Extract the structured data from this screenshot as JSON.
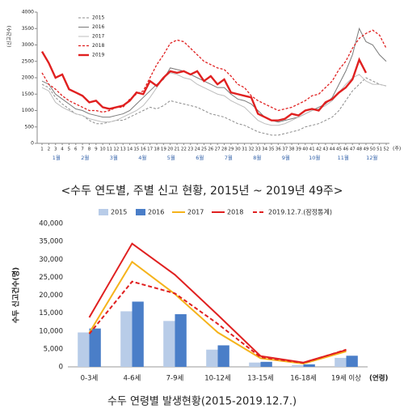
{
  "chart_data": [
    {
      "type": "line",
      "y_label": "(신고건수)",
      "x_label": "(주)",
      "x": [
        1,
        2,
        3,
        4,
        5,
        6,
        7,
        8,
        9,
        10,
        11,
        12,
        13,
        14,
        15,
        16,
        17,
        18,
        19,
        20,
        21,
        22,
        23,
        24,
        25,
        26,
        27,
        28,
        29,
        30,
        31,
        32,
        33,
        34,
        35,
        36,
        37,
        38,
        39,
        40,
        41,
        42,
        43,
        44,
        45,
        46,
        47,
        48,
        49,
        50,
        51,
        52
      ],
      "xlim": [
        1,
        52
      ],
      "xticks": [
        1,
        2,
        3,
        4,
        5,
        6,
        7,
        8,
        9,
        10,
        11,
        12,
        13,
        14,
        15,
        16,
        17,
        18,
        19,
        20,
        21,
        22,
        23,
        24,
        25,
        26,
        27,
        28,
        29,
        30,
        31,
        32,
        33,
        34,
        35,
        36,
        37,
        38,
        39,
        40,
        41,
        42,
        43,
        44,
        45,
        46,
        47,
        48,
        49,
        50,
        51,
        52
      ],
      "x_groups": [
        "1월",
        "2월",
        "3월",
        "4월",
        "5월",
        "6월",
        "7월",
        "8월",
        "9월",
        "10월",
        "11월",
        "12월"
      ],
      "x_group_color": "#2f5fa8",
      "ylim": [
        0,
        4000
      ],
      "yticks": [
        0,
        500,
        1000,
        1500,
        2000,
        2500,
        3000,
        3500,
        4000
      ],
      "grid": false,
      "series": [
        {
          "name": "2015",
          "color": "#8c8c8c",
          "style": "dashed",
          "width": 1,
          "values": [
            1800,
            1700,
            1400,
            1200,
            1050,
            900,
            850,
            700,
            600,
            600,
            650,
            700,
            700,
            800,
            900,
            1000,
            1100,
            1050,
            1150,
            1300,
            1250,
            1200,
            1150,
            1100,
            1000,
            900,
            850,
            800,
            700,
            600,
            550,
            450,
            350,
            300,
            250,
            250,
            300,
            350,
            400,
            500,
            550,
            600,
            700,
            800,
            1000,
            1300,
            1600,
            1800,
            2000,
            1900,
            1800,
            1750
          ]
        },
        {
          "name": "2016",
          "color": "#7a7a7a",
          "style": "solid",
          "width": 1,
          "values": [
            1900,
            1800,
            1500,
            1350,
            1200,
            1050,
            1000,
            900,
            850,
            800,
            800,
            850,
            900,
            1000,
            1200,
            1400,
            1600,
            1800,
            1950,
            2300,
            2250,
            2200,
            2100,
            2000,
            1900,
            1800,
            1700,
            1700,
            1500,
            1350,
            1300,
            1200,
            1000,
            800,
            700,
            650,
            700,
            750,
            800,
            900,
            1000,
            1100,
            1200,
            1400,
            1800,
            2200,
            2700,
            3500,
            3100,
            3000,
            2700,
            2500
          ]
        },
        {
          "name": "2017",
          "color": "#bdbdbd",
          "style": "solid",
          "width": 1,
          "values": [
            1700,
            1600,
            1250,
            1100,
            1000,
            900,
            850,
            750,
            700,
            650,
            650,
            700,
            800,
            900,
            1000,
            1150,
            1400,
            1700,
            2000,
            2150,
            2100,
            2000,
            1950,
            1800,
            1700,
            1600,
            1500,
            1450,
            1300,
            1200,
            1100,
            900,
            700,
            600,
            550,
            550,
            600,
            700,
            800,
            900,
            1000,
            1050,
            1150,
            1300,
            1550,
            1800,
            2000,
            2100,
            1900,
            1800,
            1800,
            1750
          ]
        },
        {
          "name": "2018",
          "color": "#e02020",
          "style": "dashed",
          "width": 1.3,
          "values": [
            2150,
            1800,
            1650,
            1450,
            1300,
            1200,
            1100,
            1000,
            1000,
            950,
            1000,
            1100,
            1100,
            1350,
            1500,
            1600,
            2000,
            2400,
            2700,
            3050,
            3150,
            3100,
            2900,
            2700,
            2500,
            2400,
            2300,
            2250,
            2050,
            1800,
            1700,
            1450,
            1300,
            1200,
            1100,
            1000,
            1050,
            1100,
            1200,
            1300,
            1450,
            1500,
            1700,
            1900,
            2250,
            2500,
            2900,
            3200,
            3350,
            3450,
            3300,
            2900
          ]
        },
        {
          "name": "2019",
          "color": "#e02020",
          "style": "solid",
          "width": 2.4,
          "values": [
            2800,
            2450,
            2000,
            2100,
            1650,
            1550,
            1450,
            1250,
            1300,
            1100,
            1050,
            1100,
            1150,
            1300,
            1550,
            1500,
            1900,
            1750,
            2000,
            2200,
            2150,
            2200,
            2100,
            2200,
            1900,
            2050,
            1800,
            1950,
            1550,
            1500,
            1450,
            1400,
            900,
            800,
            700,
            700,
            750,
            900,
            850,
            1000,
            1050,
            1000,
            1250,
            1350,
            1550,
            1700,
            1950,
            2550,
            2150,
            null,
            null,
            null
          ]
        }
      ],
      "caption": "<수두 연도별, 주별 신고 현황, 2015년 ~ 2019년 49주>"
    },
    {
      "type": "combo",
      "y_label": "수두 신고건수(명)",
      "x_label": "(연령)",
      "categories": [
        "0-3세",
        "4-6세",
        "7-9세",
        "10-12세",
        "13-15세",
        "16-18세",
        "19세 이상"
      ],
      "ylim": [
        0,
        40000
      ],
      "yticks": [
        0,
        {
          "value": 5000,
          "label": "5,000"
        },
        {
          "value": 10000,
          "label": "10,000"
        },
        {
          "value": 15000,
          "label": "15,000"
        },
        {
          "value": 20000,
          "label": "20,000"
        },
        {
          "value": 25000,
          "label": "25,000"
        },
        {
          "value": 30000,
          "label": "30,000"
        },
        {
          "value": 35000,
          "label": "35,000"
        },
        {
          "value": 40000,
          "label": "40,000"
        }
      ],
      "grid": false,
      "series": [
        {
          "name": "2015",
          "kind": "bar",
          "color": "#b8cce8",
          "values": [
            9600,
            15500,
            12800,
            4800,
            1200,
            500,
            2500
          ]
        },
        {
          "name": "2016",
          "kind": "bar",
          "color": "#4a7ec8",
          "values": [
            10700,
            18200,
            14700,
            6000,
            1400,
            700,
            3100
          ]
        },
        {
          "name": "2017",
          "kind": "line",
          "color": "#f5b31b",
          "style": "solid",
          "values": [
            9500,
            29300,
            20300,
            9600,
            2400,
            900,
            4300
          ]
        },
        {
          "name": "2018",
          "kind": "line",
          "color": "#e02020",
          "style": "solid",
          "values": [
            13800,
            34400,
            25700,
            14500,
            3000,
            1200,
            4700
          ]
        },
        {
          "name": "2019.12.7.(잠정통계)",
          "kind": "line",
          "color": "#e02020",
          "style": "dashed",
          "values": [
            9200,
            23800,
            20500,
            12000,
            2700,
            1100,
            4800
          ]
        }
      ],
      "caption": "수두 연령별 발생현황(2015-2019.12.7.)"
    }
  ]
}
